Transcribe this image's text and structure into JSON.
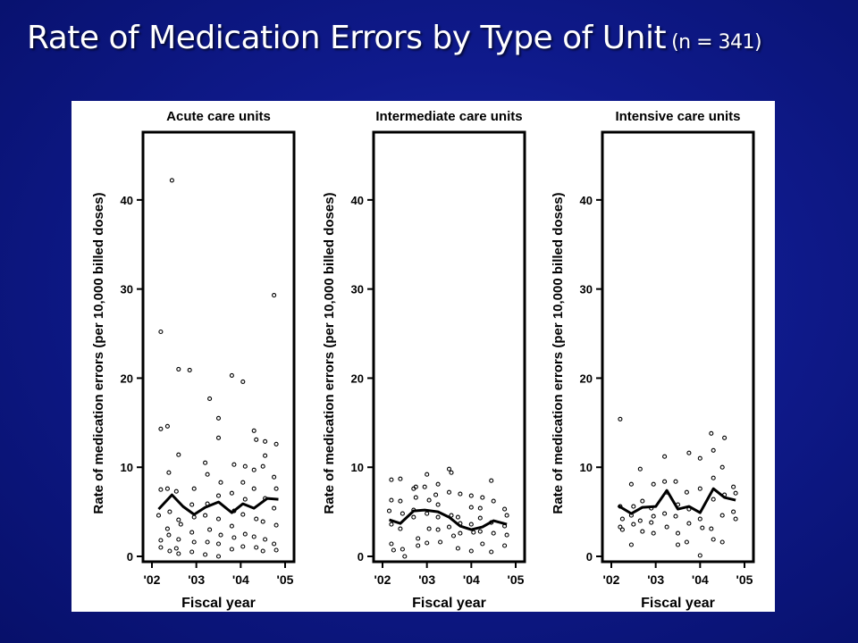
{
  "slide": {
    "title": "Rate of Medication Errors by Type of Unit",
    "subtitle": "(n = 341)"
  },
  "colors": {
    "background": "#0f1a8c",
    "title": "#ffffff",
    "figure_bg": "#ffffff",
    "ink": "#000000"
  },
  "chart_data": [
    {
      "type": "scatter",
      "title": "Acute care units",
      "xlabel": "Fiscal year",
      "ylabel": "Rate of medication errors (per 10,000 billed doses)",
      "xlim": [
        2002,
        2005
      ],
      "ylim": [
        0,
        47
      ],
      "x_tick_labels": [
        "'02",
        "'03",
        "'04",
        "'05"
      ],
      "y_ticks": [
        0,
        10,
        20,
        30,
        40
      ],
      "grid": false,
      "points": [
        [
          2002.2,
          25.2
        ],
        [
          2002.2,
          14.3
        ],
        [
          2002.2,
          7.5
        ],
        [
          2002.15,
          4.6
        ],
        [
          2002.2,
          1.8
        ],
        [
          2002.2,
          1.0
        ],
        [
          2002.35,
          14.6
        ],
        [
          2002.38,
          9.4
        ],
        [
          2002.35,
          7.6
        ],
        [
          2002.4,
          5.0
        ],
        [
          2002.35,
          3.1
        ],
        [
          2002.38,
          2.4
        ],
        [
          2002.4,
          0.6
        ],
        [
          2002.45,
          42.2
        ],
        [
          2002.6,
          21.0
        ],
        [
          2002.6,
          11.4
        ],
        [
          2002.55,
          7.3
        ],
        [
          2002.6,
          4.1
        ],
        [
          2002.65,
          3.6
        ],
        [
          2002.6,
          1.9
        ],
        [
          2002.55,
          0.9
        ],
        [
          2002.6,
          0.3
        ],
        [
          2002.85,
          20.9
        ],
        [
          2002.95,
          7.6
        ],
        [
          2002.9,
          5.8
        ],
        [
          2002.95,
          4.4
        ],
        [
          2002.9,
          2.7
        ],
        [
          2002.95,
          1.6
        ],
        [
          2002.9,
          0.5
        ],
        [
          2003.3,
          17.7
        ],
        [
          2003.2,
          10.5
        ],
        [
          2003.25,
          9.2
        ],
        [
          2003.25,
          5.9
        ],
        [
          2003.2,
          4.6
        ],
        [
          2003.3,
          3.0
        ],
        [
          2003.25,
          1.6
        ],
        [
          2003.2,
          0.2
        ],
        [
          2003.5,
          15.5
        ],
        [
          2003.5,
          13.3
        ],
        [
          2003.55,
          8.3
        ],
        [
          2003.5,
          6.8
        ],
        [
          2003.5,
          4.2
        ],
        [
          2003.55,
          2.4
        ],
        [
          2003.5,
          1.4
        ],
        [
          2003.5,
          0.0
        ],
        [
          2003.8,
          20.3
        ],
        [
          2003.85,
          10.3
        ],
        [
          2003.8,
          7.1
        ],
        [
          2003.85,
          5.1
        ],
        [
          2003.8,
          3.4
        ],
        [
          2003.85,
          2.1
        ],
        [
          2003.8,
          0.8
        ],
        [
          2004.05,
          19.6
        ],
        [
          2004.1,
          10.1
        ],
        [
          2004.05,
          8.3
        ],
        [
          2004.1,
          6.4
        ],
        [
          2004.05,
          4.7
        ],
        [
          2004.1,
          2.5
        ],
        [
          2004.05,
          1.1
        ],
        [
          2004.3,
          14.1
        ],
        [
          2004.35,
          13.1
        ],
        [
          2004.3,
          9.7
        ],
        [
          2004.3,
          7.6
        ],
        [
          2004.35,
          4.2
        ],
        [
          2004.3,
          2.2
        ],
        [
          2004.35,
          1.0
        ],
        [
          2004.55,
          12.9
        ],
        [
          2004.55,
          11.3
        ],
        [
          2004.5,
          10.1
        ],
        [
          2004.55,
          6.5
        ],
        [
          2004.5,
          3.9
        ],
        [
          2004.55,
          1.9
        ],
        [
          2004.5,
          0.6
        ],
        [
          2004.75,
          29.3
        ],
        [
          2004.8,
          12.6
        ],
        [
          2004.75,
          8.9
        ],
        [
          2004.8,
          7.6
        ],
        [
          2004.75,
          5.4
        ],
        [
          2004.8,
          3.5
        ],
        [
          2004.75,
          1.4
        ],
        [
          2004.8,
          0.7
        ]
      ],
      "trend": [
        [
          2002.15,
          5.3
        ],
        [
          2002.45,
          6.9
        ],
        [
          2002.7,
          5.6
        ],
        [
          2002.95,
          4.7
        ],
        [
          2003.2,
          5.5
        ],
        [
          2003.5,
          6.1
        ],
        [
          2003.8,
          4.9
        ],
        [
          2004.05,
          5.9
        ],
        [
          2004.3,
          5.4
        ],
        [
          2004.6,
          6.5
        ],
        [
          2004.85,
          6.4
        ]
      ]
    },
    {
      "type": "scatter",
      "title": "Intermediate care units",
      "xlabel": "Fiscal year",
      "ylabel": "Rate of medication errors (per 10,000 billed doses)",
      "xlim": [
        2002,
        2005
      ],
      "ylim": [
        0,
        47
      ],
      "x_tick_labels": [
        "'02",
        "'03",
        "'04",
        "'05"
      ],
      "y_ticks": [
        0,
        10,
        20,
        30,
        40
      ],
      "grid": false,
      "points": [
        [
          2002.2,
          8.6
        ],
        [
          2002.2,
          6.3
        ],
        [
          2002.15,
          5.1
        ],
        [
          2002.2,
          3.6
        ],
        [
          2002.2,
          1.4
        ],
        [
          2002.25,
          0.7
        ],
        [
          2002.4,
          8.7
        ],
        [
          2002.4,
          6.2
        ],
        [
          2002.45,
          4.8
        ],
        [
          2002.4,
          3.1
        ],
        [
          2002.45,
          0.8
        ],
        [
          2002.5,
          0.0
        ],
        [
          2002.7,
          7.6
        ],
        [
          2002.75,
          7.8
        ],
        [
          2002.75,
          6.6
        ],
        [
          2002.7,
          5.2
        ],
        [
          2002.7,
          4.4
        ],
        [
          2002.8,
          2.0
        ],
        [
          2002.8,
          1.2
        ],
        [
          2003.0,
          9.2
        ],
        [
          2002.95,
          7.8
        ],
        [
          2003.05,
          6.3
        ],
        [
          2003.0,
          4.8
        ],
        [
          2003.05,
          3.1
        ],
        [
          2003.0,
          1.5
        ],
        [
          2003.25,
          8.1
        ],
        [
          2003.2,
          6.9
        ],
        [
          2003.25,
          5.8
        ],
        [
          2003.25,
          4.4
        ],
        [
          2003.25,
          3.0
        ],
        [
          2003.3,
          1.6
        ],
        [
          2003.5,
          9.8
        ],
        [
          2003.55,
          9.4
        ],
        [
          2003.5,
          7.2
        ],
        [
          2003.55,
          4.6
        ],
        [
          2003.5,
          3.3
        ],
        [
          2003.6,
          2.3
        ],
        [
          2003.75,
          7.0
        ],
        [
          2003.7,
          4.4
        ],
        [
          2003.75,
          3.7
        ],
        [
          2003.75,
          2.6
        ],
        [
          2003.7,
          0.9
        ],
        [
          2004.0,
          6.8
        ],
        [
          2004.0,
          5.5
        ],
        [
          2004.0,
          3.6
        ],
        [
          2004.05,
          2.7
        ],
        [
          2004.0,
          0.6
        ],
        [
          2004.25,
          6.6
        ],
        [
          2004.2,
          5.4
        ],
        [
          2004.2,
          4.3
        ],
        [
          2004.2,
          2.8
        ],
        [
          2004.25,
          1.4
        ],
        [
          2004.45,
          8.5
        ],
        [
          2004.5,
          6.2
        ],
        [
          2004.45,
          3.8
        ],
        [
          2004.5,
          2.6
        ],
        [
          2004.45,
          0.5
        ],
        [
          2004.75,
          5.3
        ],
        [
          2004.8,
          4.6
        ],
        [
          2004.75,
          3.4
        ],
        [
          2004.8,
          2.4
        ],
        [
          2004.75,
          1.2
        ]
      ],
      "trend": [
        [
          2002.15,
          4.1
        ],
        [
          2002.4,
          3.7
        ],
        [
          2002.7,
          5.1
        ],
        [
          2002.95,
          5.2
        ],
        [
          2003.25,
          5.0
        ],
        [
          2003.5,
          4.4
        ],
        [
          2003.75,
          3.4
        ],
        [
          2004.0,
          3.0
        ],
        [
          2004.25,
          3.3
        ],
        [
          2004.5,
          4.0
        ],
        [
          2004.8,
          3.6
        ]
      ]
    },
    {
      "type": "scatter",
      "title": "Intensive care units",
      "xlabel": "Fiscal year",
      "ylabel": "Rate of medication errors (per 10,000 billed doses)",
      "xlim": [
        2002,
        2005
      ],
      "ylim": [
        0,
        47
      ],
      "x_tick_labels": [
        "'02",
        "'03",
        "'04",
        "'05"
      ],
      "y_ticks": [
        0,
        10,
        20,
        30,
        40
      ],
      "grid": false,
      "points": [
        [
          2002.2,
          15.4
        ],
        [
          2002.2,
          5.6
        ],
        [
          2002.25,
          4.2
        ],
        [
          2002.2,
          3.3
        ],
        [
          2002.25,
          3.0
        ],
        [
          2002.45,
          8.1
        ],
        [
          2002.5,
          5.6
        ],
        [
          2002.45,
          4.6
        ],
        [
          2002.5,
          3.6
        ],
        [
          2002.45,
          1.3
        ],
        [
          2002.65,
          9.8
        ],
        [
          2002.7,
          6.2
        ],
        [
          2002.65,
          4.0
        ],
        [
          2002.7,
          2.8
        ],
        [
          2002.95,
          8.1
        ],
        [
          2002.9,
          5.4
        ],
        [
          2002.95,
          4.5
        ],
        [
          2002.9,
          3.8
        ],
        [
          2002.95,
          2.6
        ],
        [
          2003.2,
          11.2
        ],
        [
          2003.2,
          8.4
        ],
        [
          2003.25,
          7.2
        ],
        [
          2003.2,
          4.8
        ],
        [
          2003.25,
          3.3
        ],
        [
          2003.45,
          8.4
        ],
        [
          2003.5,
          5.8
        ],
        [
          2003.45,
          4.5
        ],
        [
          2003.5,
          2.6
        ],
        [
          2003.5,
          1.3
        ],
        [
          2003.75,
          11.6
        ],
        [
          2003.7,
          7.2
        ],
        [
          2003.75,
          5.3
        ],
        [
          2003.75,
          3.7
        ],
        [
          2003.7,
          1.6
        ],
        [
          2004.0,
          11.0
        ],
        [
          2004.0,
          7.6
        ],
        [
          2004.0,
          4.2
        ],
        [
          2004.05,
          3.2
        ],
        [
          2004.0,
          0.1
        ],
        [
          2004.25,
          13.8
        ],
        [
          2004.3,
          11.9
        ],
        [
          2004.3,
          8.8
        ],
        [
          2004.3,
          6.4
        ],
        [
          2004.25,
          3.1
        ],
        [
          2004.3,
          1.9
        ],
        [
          2004.55,
          13.3
        ],
        [
          2004.5,
          10.0
        ],
        [
          2004.55,
          6.9
        ],
        [
          2004.5,
          4.6
        ],
        [
          2004.5,
          1.6
        ],
        [
          2004.75,
          7.8
        ],
        [
          2004.8,
          7.1
        ],
        [
          2004.75,
          5.0
        ],
        [
          2004.8,
          4.2
        ]
      ],
      "trend": [
        [
          2002.15,
          5.7
        ],
        [
          2002.45,
          4.8
        ],
        [
          2002.7,
          5.5
        ],
        [
          2003.0,
          5.6
        ],
        [
          2003.25,
          7.4
        ],
        [
          2003.5,
          5.3
        ],
        [
          2003.75,
          5.6
        ],
        [
          2004.0,
          4.9
        ],
        [
          2004.3,
          7.6
        ],
        [
          2004.55,
          6.6
        ],
        [
          2004.8,
          6.3
        ]
      ]
    }
  ]
}
